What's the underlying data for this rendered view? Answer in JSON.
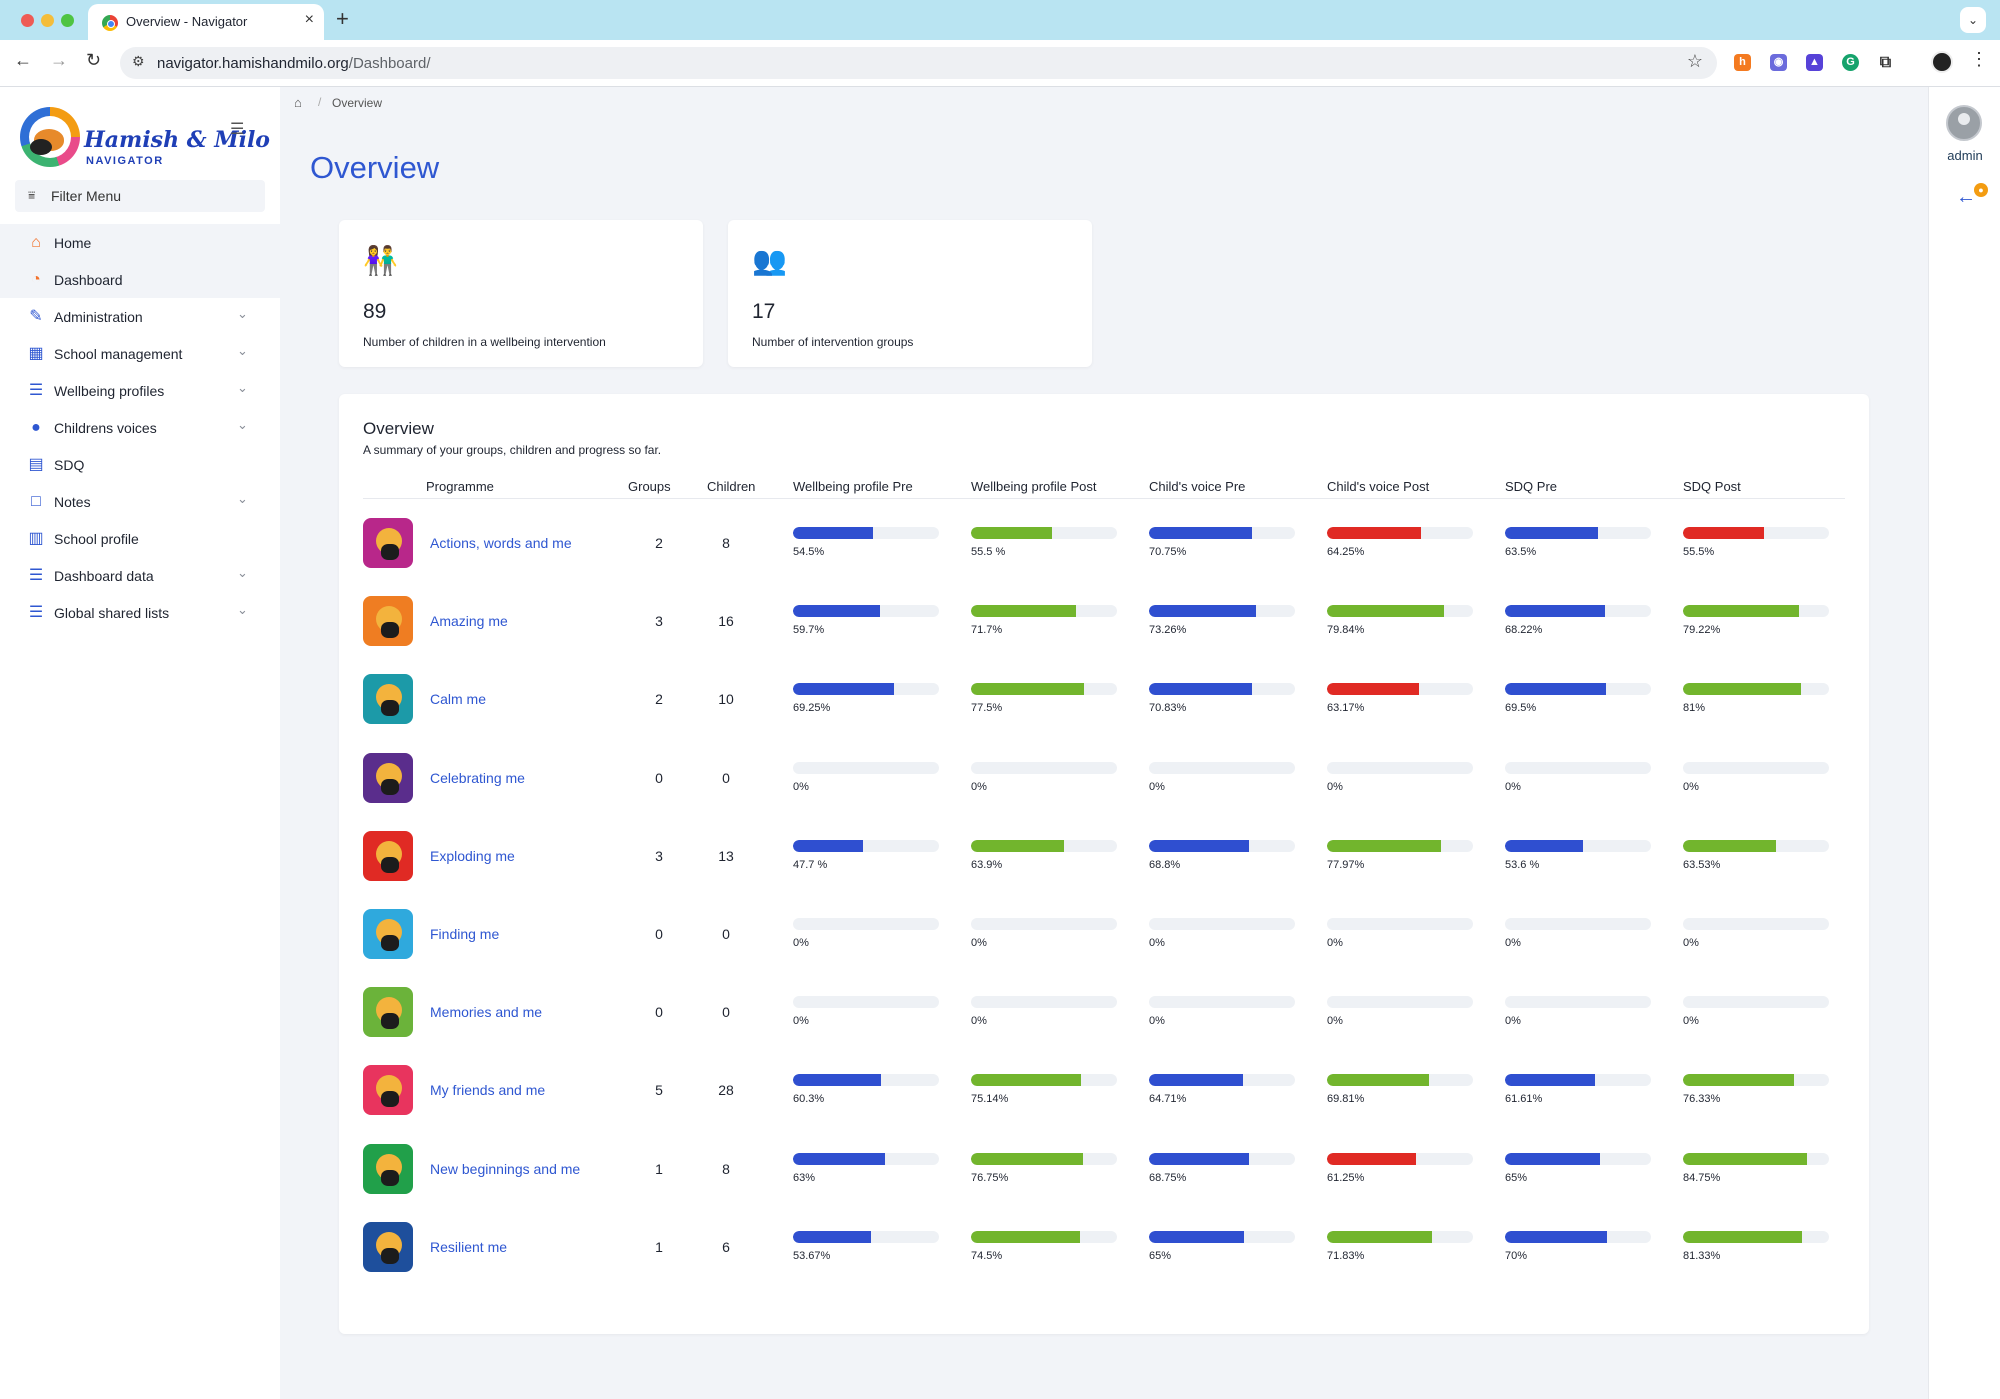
{
  "browser": {
    "tab_title": "Overview - Navigator",
    "url_host": "navigator.hamishandmilo.org",
    "url_path": "/Dashboard/"
  },
  "sidebar": {
    "logo_name": "Hamish & Milo",
    "logo_sub": "NAVIGATOR",
    "filter_label": "Filter Menu",
    "items": [
      {
        "label": "Home",
        "icon": "home-icon",
        "active": true,
        "expandable": false
      },
      {
        "label": "Dashboard",
        "icon": "pie-chart-icon",
        "active": true,
        "expandable": false
      },
      {
        "label": "Administration",
        "icon": "wrench-icon",
        "active": false,
        "expandable": true
      },
      {
        "label": "School management",
        "icon": "building-icon",
        "active": false,
        "expandable": true
      },
      {
        "label": "Wellbeing profiles",
        "icon": "sliders-icon",
        "active": false,
        "expandable": true
      },
      {
        "label": "Childrens voices",
        "icon": "speech-bubble-icon",
        "active": false,
        "expandable": true
      },
      {
        "label": "SDQ",
        "icon": "document-icon",
        "active": false,
        "expandable": false
      },
      {
        "label": "Notes",
        "icon": "note-icon",
        "active": false,
        "expandable": true
      },
      {
        "label": "School profile",
        "icon": "school-icon",
        "active": false,
        "expandable": false
      },
      {
        "label": "Dashboard data",
        "icon": "list-icon",
        "active": false,
        "expandable": true
      },
      {
        "label": "Global shared lists",
        "icon": "list-icon",
        "active": false,
        "expandable": true
      }
    ]
  },
  "breadcrumb": {
    "current": "Overview"
  },
  "page": {
    "title": "Overview"
  },
  "stats": [
    {
      "value": "89",
      "label": "Number of children in a wellbeing intervention",
      "icon": "children-icon"
    },
    {
      "value": "17",
      "label": "Number of intervention groups",
      "icon": "group-icon"
    }
  ],
  "overview": {
    "title": "Overview",
    "subtitle": "A summary of your groups, children and progress so far.",
    "columns": [
      "Programme",
      "Groups",
      "Children",
      "Wellbeing profile Pre",
      "Wellbeing profile Post",
      "Child's voice Pre",
      "Child's voice Post",
      "SDQ Pre",
      "SDQ Post"
    ],
    "rows": [
      {
        "name": "Actions, words and me",
        "groups": "2",
        "children": "8",
        "icon_color": "#b8278a",
        "metrics": [
          {
            "label": "54.5%",
            "pct": 54.5,
            "color": "blue"
          },
          {
            "label": "55.5 %",
            "pct": 55.5,
            "color": "green"
          },
          {
            "label": "70.75%",
            "pct": 70.75,
            "color": "blue"
          },
          {
            "label": "64.25%",
            "pct": 64.25,
            "color": "red"
          },
          {
            "label": "63.5%",
            "pct": 63.5,
            "color": "blue"
          },
          {
            "label": "55.5%",
            "pct": 55.5,
            "color": "red"
          }
        ]
      },
      {
        "name": "Amazing me",
        "groups": "3",
        "children": "16",
        "icon_color": "#ef7d22",
        "metrics": [
          {
            "label": "59.7%",
            "pct": 59.7,
            "color": "blue"
          },
          {
            "label": "71.7%",
            "pct": 71.7,
            "color": "green"
          },
          {
            "label": "73.26%",
            "pct": 73.26,
            "color": "blue"
          },
          {
            "label": "79.84%",
            "pct": 79.84,
            "color": "green"
          },
          {
            "label": "68.22%",
            "pct": 68.22,
            "color": "blue"
          },
          {
            "label": "79.22%",
            "pct": 79.22,
            "color": "green"
          }
        ]
      },
      {
        "name": "Calm me",
        "groups": "2",
        "children": "10",
        "icon_color": "#1c9aa8",
        "metrics": [
          {
            "label": "69.25%",
            "pct": 69.25,
            "color": "blue"
          },
          {
            "label": "77.5%",
            "pct": 77.5,
            "color": "green"
          },
          {
            "label": "70.83%",
            "pct": 70.83,
            "color": "blue"
          },
          {
            "label": "63.17%",
            "pct": 63.17,
            "color": "red"
          },
          {
            "label": "69.5%",
            "pct": 69.5,
            "color": "blue"
          },
          {
            "label": "81%",
            "pct": 81,
            "color": "green"
          }
        ]
      },
      {
        "name": "Celebrating me",
        "groups": "0",
        "children": "0",
        "icon_color": "#5a2d8c",
        "metrics": [
          {
            "label": "0%",
            "pct": 0,
            "color": "blue"
          },
          {
            "label": "0%",
            "pct": 0,
            "color": "green"
          },
          {
            "label": "0%",
            "pct": 0,
            "color": "blue"
          },
          {
            "label": "0%",
            "pct": 0,
            "color": "green"
          },
          {
            "label": "0%",
            "pct": 0,
            "color": "blue"
          },
          {
            "label": "0%",
            "pct": 0,
            "color": "green"
          }
        ]
      },
      {
        "name": "Exploding me",
        "groups": "3",
        "children": "13",
        "icon_color": "#e02a24",
        "metrics": [
          {
            "label": "47.7 %",
            "pct": 47.7,
            "color": "blue"
          },
          {
            "label": "63.9%",
            "pct": 63.9,
            "color": "green"
          },
          {
            "label": "68.8%",
            "pct": 68.8,
            "color": "blue"
          },
          {
            "label": "77.97%",
            "pct": 77.97,
            "color": "green"
          },
          {
            "label": "53.6 %",
            "pct": 53.6,
            "color": "blue"
          },
          {
            "label": "63.53%",
            "pct": 63.53,
            "color": "green"
          }
        ]
      },
      {
        "name": "Finding me",
        "groups": "0",
        "children": "0",
        "icon_color": "#2fa9dd",
        "metrics": [
          {
            "label": "0%",
            "pct": 0,
            "color": "blue"
          },
          {
            "label": "0%",
            "pct": 0,
            "color": "green"
          },
          {
            "label": "0%",
            "pct": 0,
            "color": "blue"
          },
          {
            "label": "0%",
            "pct": 0,
            "color": "green"
          },
          {
            "label": "0%",
            "pct": 0,
            "color": "blue"
          },
          {
            "label": "0%",
            "pct": 0,
            "color": "green"
          }
        ]
      },
      {
        "name": "Memories and me",
        "groups": "0",
        "children": "0",
        "icon_color": "#6bb33a",
        "metrics": [
          {
            "label": "0%",
            "pct": 0,
            "color": "blue"
          },
          {
            "label": "0%",
            "pct": 0,
            "color": "green"
          },
          {
            "label": "0%",
            "pct": 0,
            "color": "blue"
          },
          {
            "label": "0%",
            "pct": 0,
            "color": "green"
          },
          {
            "label": "0%",
            "pct": 0,
            "color": "blue"
          },
          {
            "label": "0%",
            "pct": 0,
            "color": "green"
          }
        ]
      },
      {
        "name": "My friends and me",
        "groups": "5",
        "children": "28",
        "icon_color": "#e8345e",
        "metrics": [
          {
            "label": "60.3%",
            "pct": 60.3,
            "color": "blue"
          },
          {
            "label": "75.14%",
            "pct": 75.14,
            "color": "green"
          },
          {
            "label": "64.71%",
            "pct": 64.71,
            "color": "blue"
          },
          {
            "label": "69.81%",
            "pct": 69.81,
            "color": "green"
          },
          {
            "label": "61.61%",
            "pct": 61.61,
            "color": "blue"
          },
          {
            "label": "76.33%",
            "pct": 76.33,
            "color": "green"
          }
        ]
      },
      {
        "name": "New beginnings and me",
        "groups": "1",
        "children": "8",
        "icon_color": "#21a04a",
        "metrics": [
          {
            "label": "63%",
            "pct": 63,
            "color": "blue"
          },
          {
            "label": "76.75%",
            "pct": 76.75,
            "color": "green"
          },
          {
            "label": "68.75%",
            "pct": 68.75,
            "color": "blue"
          },
          {
            "label": "61.25%",
            "pct": 61.25,
            "color": "red"
          },
          {
            "label": "65%",
            "pct": 65,
            "color": "blue"
          },
          {
            "label": "84.75%",
            "pct": 84.75,
            "color": "green"
          }
        ]
      },
      {
        "name": "Resilient me",
        "groups": "1",
        "children": "6",
        "icon_color": "#1e4f9c",
        "metrics": [
          {
            "label": "53.67%",
            "pct": 53.67,
            "color": "blue"
          },
          {
            "label": "74.5%",
            "pct": 74.5,
            "color": "green"
          },
          {
            "label": "65%",
            "pct": 65,
            "color": "blue"
          },
          {
            "label": "71.83%",
            "pct": 71.83,
            "color": "green"
          },
          {
            "label": "70%",
            "pct": 70,
            "color": "blue"
          },
          {
            "label": "81.33%",
            "pct": 81.33,
            "color": "green"
          }
        ]
      }
    ]
  },
  "user": {
    "name": "admin"
  },
  "colors": {
    "blue": "#2f4fd0",
    "green": "#72b52d",
    "red": "#e02a24",
    "accent": "#2f57d1"
  }
}
